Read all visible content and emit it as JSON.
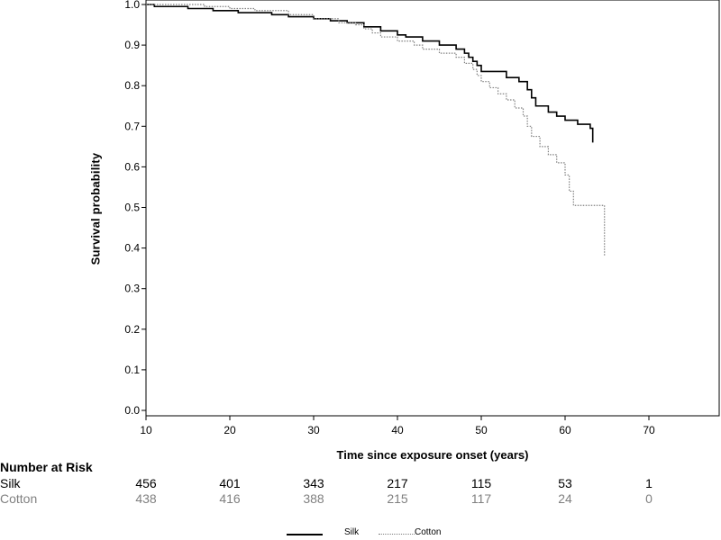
{
  "chart_data": {
    "type": "line",
    "xlabel": "Time since exposure onset (years)",
    "ylabel": "Survival    probability",
    "xlim": [
      10,
      80
    ],
    "ylim": [
      0,
      1.0
    ],
    "x_ticks": [
      10,
      20,
      30,
      40,
      50,
      60,
      70
    ],
    "y_ticks": [
      "0.0",
      "0.1",
      "0.2",
      "0.3",
      "0.4",
      "0.5",
      "0.6",
      "0.7",
      "0.8",
      "0.9",
      "1.0"
    ],
    "series": [
      {
        "name": "Silk",
        "color": "#000000",
        "style": "solid",
        "x": [
          10,
          11,
          15,
          18,
          21,
          25,
          27,
          30,
          32,
          34,
          36,
          38,
          40,
          41,
          43,
          45,
          47,
          48,
          48.5,
          49,
          49.5,
          50,
          53,
          54.5,
          55.5,
          56,
          56.5,
          58,
          59,
          60,
          61.5,
          63,
          63.3
        ],
        "y": [
          1.0,
          0.995,
          0.99,
          0.985,
          0.98,
          0.975,
          0.97,
          0.965,
          0.96,
          0.955,
          0.945,
          0.935,
          0.925,
          0.92,
          0.91,
          0.9,
          0.89,
          0.88,
          0.87,
          0.86,
          0.85,
          0.835,
          0.82,
          0.81,
          0.79,
          0.77,
          0.75,
          0.735,
          0.725,
          0.715,
          0.705,
          0.695,
          0.66
        ]
      },
      {
        "name": "Cotton",
        "color": "#808080",
        "style": "dotted",
        "x": [
          10,
          11,
          14,
          17,
          20,
          23,
          27,
          30,
          33,
          35,
          36,
          37,
          38,
          40,
          42,
          43,
          45,
          47,
          48,
          49,
          49.5,
          50,
          51,
          52,
          53,
          54,
          55,
          55.5,
          56,
          57,
          58,
          59,
          60,
          60.5,
          61,
          64.5,
          64.7
        ],
        "y": [
          1.0,
          1.0,
          1.0,
          0.995,
          0.99,
          0.985,
          0.975,
          0.965,
          0.955,
          0.95,
          0.94,
          0.93,
          0.92,
          0.91,
          0.9,
          0.89,
          0.88,
          0.87,
          0.855,
          0.84,
          0.825,
          0.81,
          0.795,
          0.78,
          0.765,
          0.745,
          0.725,
          0.7,
          0.675,
          0.65,
          0.63,
          0.61,
          0.58,
          0.54,
          0.505,
          0.505,
          0.38
        ]
      }
    ]
  },
  "risk_table": {
    "title": "Number at Risk",
    "times": [
      10,
      20,
      30,
      40,
      50,
      60,
      70
    ],
    "rows": [
      {
        "name": "Silk",
        "color": "#000000",
        "values": [
          "456",
          "401",
          "343",
          "217",
          "115",
          "53",
          "1"
        ]
      },
      {
        "name": "Cotton",
        "color": "#808080",
        "values": [
          "438",
          "416",
          "388",
          "215",
          "117",
          "24",
          "0"
        ]
      }
    ]
  },
  "legend": [
    {
      "label": "Silk",
      "color": "#000000",
      "style": "solid"
    },
    {
      "label": "Cotton",
      "color": "#808080",
      "style": "dotted"
    }
  ]
}
